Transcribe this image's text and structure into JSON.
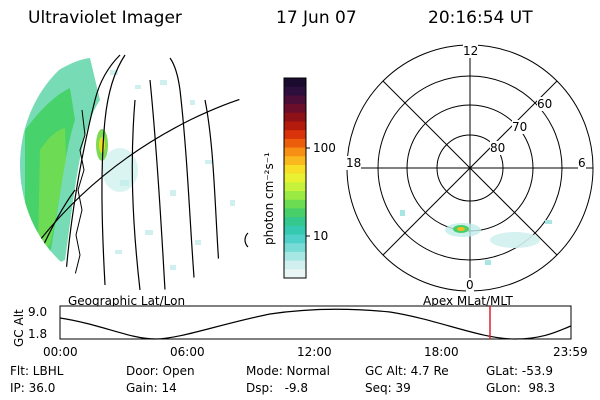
{
  "header": {
    "instrument": "Ultraviolet Imager",
    "date": "17 Jun 07",
    "time": "20:16:54 UT"
  },
  "colorbar": {
    "unit_label": "photon cm⁻²s⁻¹",
    "ticks": [
      "100",
      "10"
    ],
    "colors": [
      "#1b0b2e",
      "#2d0f3d",
      "#4a0e39",
      "#6b0e2c",
      "#8e1118",
      "#b51b0d",
      "#d8330a",
      "#ec5e0c",
      "#f68f13",
      "#f9b81d",
      "#f7df27",
      "#e8f232",
      "#c6f23b",
      "#9bea44",
      "#6cdc52",
      "#48cf6a",
      "#34c78e",
      "#36c9b1",
      "#4fd1c9",
      "#78dbd6",
      "#a6e6e3",
      "#d0efee",
      "#eaf6f6"
    ]
  },
  "left_panel": {
    "caption": "Geographic Lat/Lon"
  },
  "right_panel": {
    "caption": "Apex MLat/MLT",
    "mlt_labels": {
      "top": "12",
      "left": "18",
      "right": "6",
      "bottom": "0"
    },
    "lat_labels": [
      "60",
      "70",
      "80"
    ]
  },
  "timeline": {
    "ylabel": "GC Alt",
    "y_ticks": [
      "9.0",
      "1.8"
    ],
    "x_ticks": [
      "00:00",
      "06:00",
      "12:00",
      "18:00",
      "23:59"
    ],
    "marker_color": "#e0202a"
  },
  "info": {
    "filter": "Flt: LBHL",
    "ip": "IP: 36.0",
    "door": "Door: Open",
    "gain": "Gain: 14",
    "mode": "Mode: Normal",
    "dsp": "Dsp:   -9.8",
    "gc_alt": "GC Alt: 4.7 Re",
    "seq": "Seq: 39",
    "glat": "GLat: -53.9",
    "glon": "GLon:  98.3"
  }
}
